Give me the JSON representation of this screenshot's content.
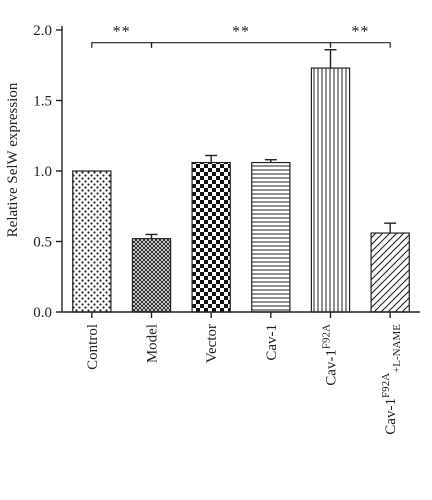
{
  "chart_data": {
    "type": "bar",
    "categories": [
      "Control",
      "Model",
      "Vector",
      "Cav-1",
      "Cav-1 F92A",
      "Cav-1 F92A + L-NAME"
    ],
    "category_labels": [
      {
        "parts": [
          {
            "t": "Control",
            "s": "n"
          }
        ]
      },
      {
        "parts": [
          {
            "t": "Model",
            "s": "n"
          }
        ]
      },
      {
        "parts": [
          {
            "t": "Vector",
            "s": "n"
          }
        ]
      },
      {
        "parts": [
          {
            "t": "Cav-1",
            "s": "n"
          }
        ]
      },
      {
        "parts": [
          {
            "t": "Cav-1",
            "s": "n"
          },
          {
            "t": "F92A",
            "s": "sup"
          }
        ]
      },
      {
        "parts": [
          {
            "t": "Cav-1",
            "s": "n"
          },
          {
            "t": "F92A",
            "s": "sup"
          },
          {
            "t": "+L-NAME",
            "s": "sub"
          }
        ]
      }
    ],
    "values": [
      1.0,
      0.52,
      1.06,
      1.06,
      1.73,
      0.56
    ],
    "errors": [
      0.0,
      0.03,
      0.05,
      0.02,
      0.13,
      0.07
    ],
    "patterns": [
      "dots",
      "crosshatch",
      "checker",
      "hlines",
      "vlines",
      "diag"
    ],
    "ylabel": "Relative SelW expression",
    "xlabel": "",
    "title": "",
    "ylim": [
      0,
      2.0
    ],
    "yticks": [
      0.0,
      0.5,
      1.0,
      1.5,
      2.0
    ],
    "grid": false,
    "significance": [
      {
        "from": 0,
        "to": 1,
        "level": 1.91,
        "label": "**"
      },
      {
        "from": 1,
        "to": 4,
        "level": 1.91,
        "label": "**"
      },
      {
        "from": 4,
        "to": 5,
        "level": 1.91,
        "label": "**"
      }
    ]
  }
}
